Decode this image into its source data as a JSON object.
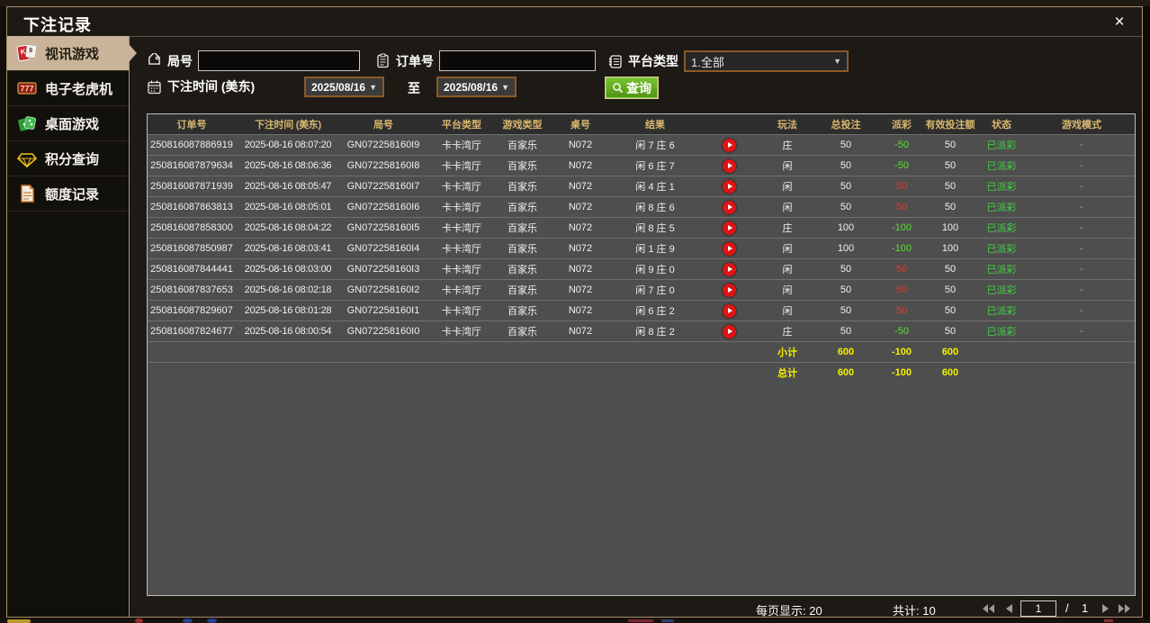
{
  "dialog": {
    "title": "下注记录",
    "close_glyph": "×"
  },
  "sidebar": {
    "items": [
      {
        "label": "视讯游戏",
        "icon": "playing-cards-icon",
        "active": true
      },
      {
        "label": "电子老虎机",
        "icon": "slot-777-icon",
        "active": false
      },
      {
        "label": "桌面游戏",
        "icon": "table-games-icon",
        "active": false
      },
      {
        "label": "积分查询",
        "icon": "points-diamond-icon",
        "active": false
      },
      {
        "label": "额度记录",
        "icon": "credit-record-icon",
        "active": false
      }
    ]
  },
  "filters": {
    "round_label": "局号",
    "round_value": "",
    "order_label": "订单号",
    "order_value": "",
    "platform_label": "平台类型",
    "platform_value": "1.全部",
    "time_label": "下注时间 (美东)",
    "date_from": "2025/08/16",
    "to_label": "至",
    "date_to": "2025/08/16",
    "query_label": "查询",
    "dropdown_arrow": "▼"
  },
  "table": {
    "headers": [
      "订单号",
      "下注时间 (美东)",
      "局号",
      "平台类型",
      "游戏类型",
      "桌号",
      "结果",
      "",
      "玩法",
      "总投注",
      "派彩",
      "有效投注额",
      "状态",
      "游戏模式"
    ],
    "rows": [
      {
        "order": "250816087886919",
        "time": "2025-08-16 08:07:20",
        "round": "GN072258160I9",
        "platform": "卡卡湾厅",
        "game": "百家乐",
        "table_no": "N072",
        "result": "闲 7 庄 6",
        "play": "庄",
        "total_bet": "50",
        "payout": "-50",
        "valid_bet": "50",
        "status": "已派彩",
        "mode": "-"
      },
      {
        "order": "250816087879634",
        "time": "2025-08-16 08:06:36",
        "round": "GN072258160I8",
        "platform": "卡卡湾厅",
        "game": "百家乐",
        "table_no": "N072",
        "result": "闲 6 庄 7",
        "play": "闲",
        "total_bet": "50",
        "payout": "-50",
        "valid_bet": "50",
        "status": "已派彩",
        "mode": "-"
      },
      {
        "order": "250816087871939",
        "time": "2025-08-16 08:05:47",
        "round": "GN072258160I7",
        "platform": "卡卡湾厅",
        "game": "百家乐",
        "table_no": "N072",
        "result": "闲 4 庄 1",
        "play": "闲",
        "total_bet": "50",
        "payout": "50",
        "valid_bet": "50",
        "status": "已派彩",
        "mode": "-"
      },
      {
        "order": "250816087863813",
        "time": "2025-08-16 08:05:01",
        "round": "GN072258160I6",
        "platform": "卡卡湾厅",
        "game": "百家乐",
        "table_no": "N072",
        "result": "闲 8 庄 6",
        "play": "闲",
        "total_bet": "50",
        "payout": "50",
        "valid_bet": "50",
        "status": "已派彩",
        "mode": "-"
      },
      {
        "order": "250816087858300",
        "time": "2025-08-16 08:04:22",
        "round": "GN072258160I5",
        "platform": "卡卡湾厅",
        "game": "百家乐",
        "table_no": "N072",
        "result": "闲 8 庄 5",
        "play": "庄",
        "total_bet": "100",
        "payout": "-100",
        "valid_bet": "100",
        "status": "已派彩",
        "mode": "-"
      },
      {
        "order": "250816087850987",
        "time": "2025-08-16 08:03:41",
        "round": "GN072258160I4",
        "platform": "卡卡湾厅",
        "game": "百家乐",
        "table_no": "N072",
        "result": "闲 1 庄 9",
        "play": "闲",
        "total_bet": "100",
        "payout": "-100",
        "valid_bet": "100",
        "status": "已派彩",
        "mode": "-"
      },
      {
        "order": "250816087844441",
        "time": "2025-08-16 08:03:00",
        "round": "GN072258160I3",
        "platform": "卡卡湾厅",
        "game": "百家乐",
        "table_no": "N072",
        "result": "闲 9 庄 0",
        "play": "闲",
        "total_bet": "50",
        "payout": "50",
        "valid_bet": "50",
        "status": "已派彩",
        "mode": "-"
      },
      {
        "order": "250816087837653",
        "time": "2025-08-16 08:02:18",
        "round": "GN072258160I2",
        "platform": "卡卡湾厅",
        "game": "百家乐",
        "table_no": "N072",
        "result": "闲 7 庄 0",
        "play": "闲",
        "total_bet": "50",
        "payout": "50",
        "valid_bet": "50",
        "status": "已派彩",
        "mode": "-"
      },
      {
        "order": "250816087829607",
        "time": "2025-08-16 08:01:28",
        "round": "GN072258160I1",
        "platform": "卡卡湾厅",
        "game": "百家乐",
        "table_no": "N072",
        "result": "闲 6 庄 2",
        "play": "闲",
        "total_bet": "50",
        "payout": "50",
        "valid_bet": "50",
        "status": "已派彩",
        "mode": "-"
      },
      {
        "order": "250816087824677",
        "time": "2025-08-16 08:00:54",
        "round": "GN072258160I0",
        "platform": "卡卡湾厅",
        "game": "百家乐",
        "table_no": "N072",
        "result": "闲 8 庄 2",
        "play": "庄",
        "total_bet": "50",
        "payout": "-50",
        "valid_bet": "50",
        "status": "已派彩",
        "mode": "-"
      }
    ],
    "subtotal": {
      "label": "小计",
      "total_bet": "600",
      "payout": "-100",
      "valid_bet": "600"
    },
    "grand_total": {
      "label": "总计",
      "total_bet": "600",
      "payout": "-100",
      "valid_bet": "600"
    }
  },
  "pagination": {
    "per_page": "每页显示: 20",
    "total_count": "共计: 10",
    "page_value": "1",
    "slash": "/",
    "page_total": "1"
  },
  "colors": {
    "accent_gold": "#d9b76d",
    "border_tan": "#a98f6d",
    "active_tab_bg": "#c9b49a",
    "win_red": "#dd3b2b",
    "loss_green": "#55e42e",
    "status_green": "#41d341",
    "total_yellow": "#f4f100",
    "query_green": "#5aa41e",
    "date_border": "#8a5a28"
  }
}
